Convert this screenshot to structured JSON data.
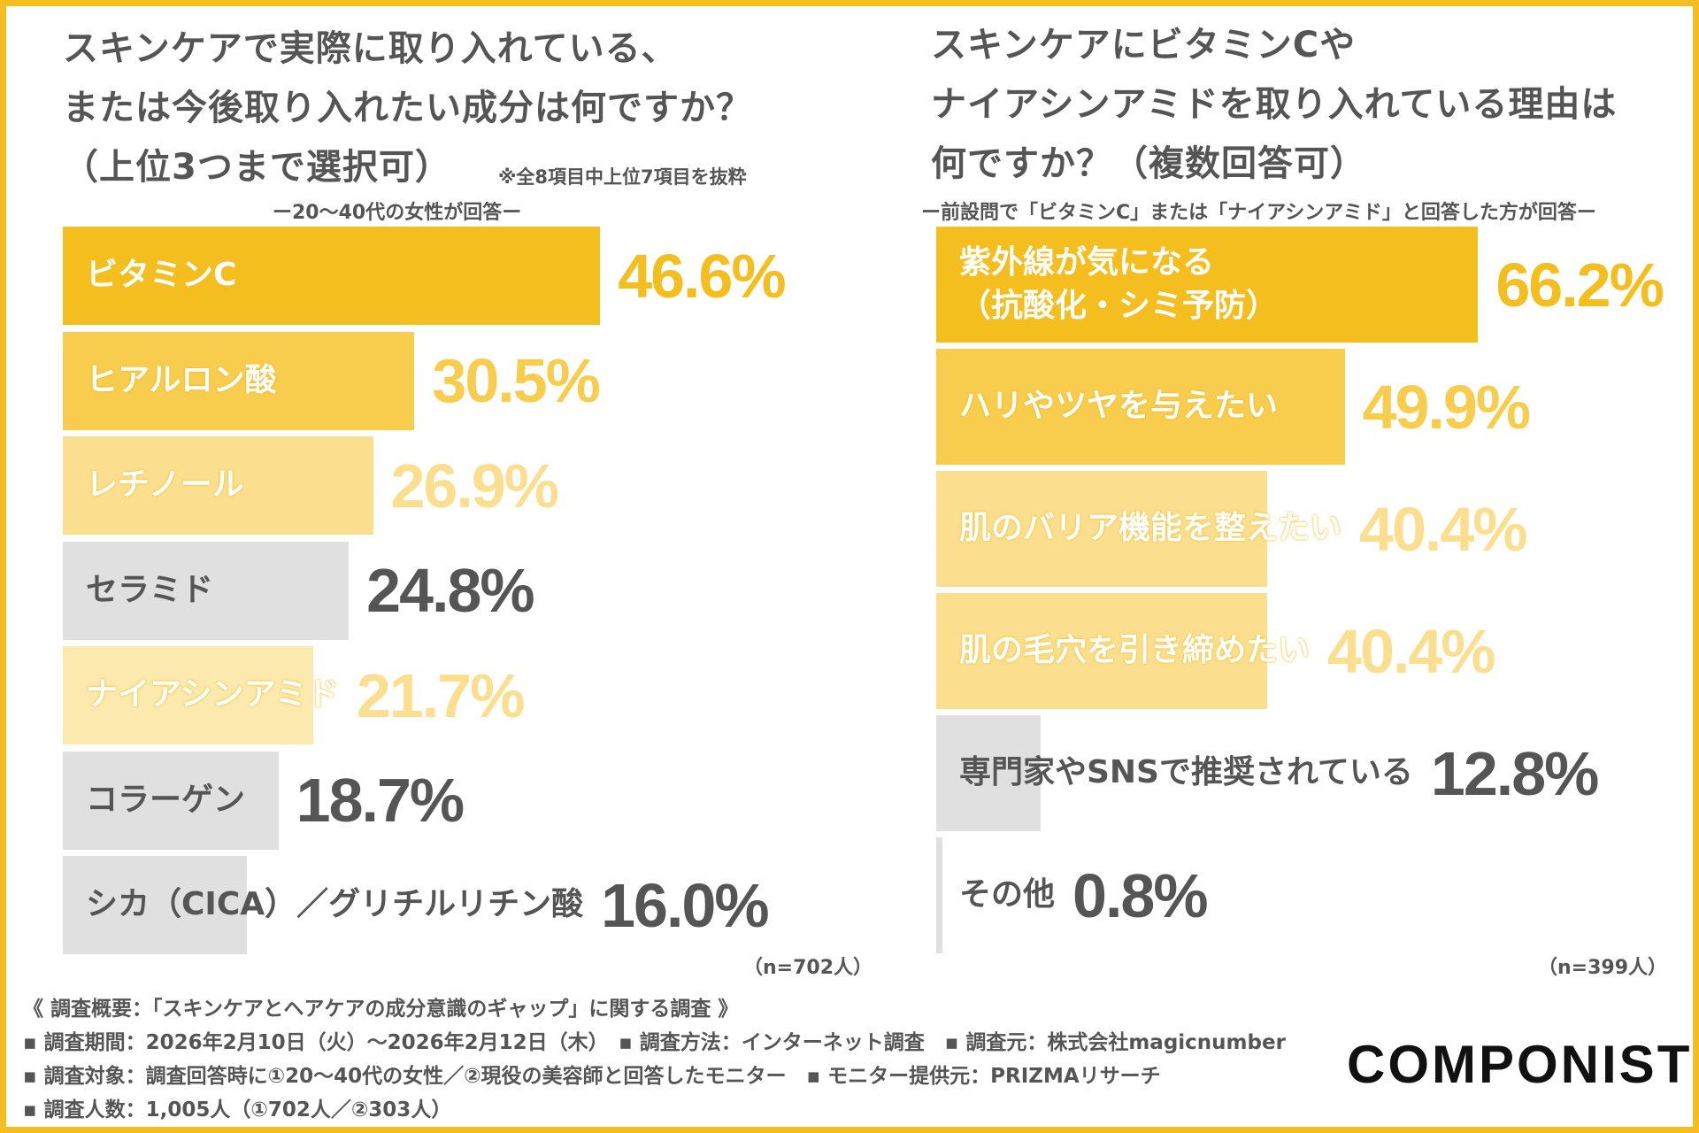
{
  "left": {
    "title_lines": [
      "スキンケアで実際に取り入れている、",
      "または今後取り入れたい成分は何ですか？",
      "（上位3つまで選択可）"
    ],
    "note": "※全8項目中上位7項目を抜粋",
    "subtitle": "ー20〜40代の女性が回答ー",
    "n_label": "（n=702人）"
  },
  "right": {
    "title_lines": [
      "スキンケアにビタミンCや",
      "ナイアシンアミドを取り入れている理由は",
      "何ですか？（複数回答可）"
    ],
    "subtitle": "ー前設問で「ビタミンC」または「ナイアシンアミド」と回答した方が回答ー",
    "n_label": "（n=399人）"
  },
  "chart_data": [
    {
      "type": "bar",
      "orientation": "horizontal",
      "unit": "%",
      "categories": [
        "ビタミンC",
        "ヒアルロン酸",
        "レチノール",
        "セラミド",
        "ナイアシンアミド",
        "コラーゲン",
        "シカ（CICA）／グリチルリチン酸"
      ],
      "values": [
        46.6,
        30.5,
        26.9,
        24.8,
        21.7,
        18.7,
        16.0
      ],
      "value_labels": [
        "46.6%",
        "30.5%",
        "26.9%",
        "24.8%",
        "21.7%",
        "18.7%",
        "16.0%"
      ],
      "bar_colors": [
        "#F5BE1F",
        "#F8CD4E",
        "#FBDF8E",
        "#E0E0E0",
        "#FCE9AE",
        "#E0E0E0",
        "#E0E0E0"
      ],
      "value_colors": [
        "#F5BE1F",
        "#F8CD4E",
        "#FBDF8E",
        "#555555",
        "#FBDF8E",
        "#555555",
        "#555555"
      ],
      "label_colors": [
        "#FFFFFF",
        "#FFFFFF",
        "#FFFFFF",
        "#555555",
        "#FFFFFF",
        "#555555",
        "#555555"
      ]
    },
    {
      "type": "bar",
      "orientation": "horizontal",
      "unit": "%",
      "categories": [
        "紫外線が気になる\n（抗酸化・シミ予防）",
        "ハリやツヤを与えたい",
        "肌のバリア機能を整えたい",
        "肌の毛穴を引き締めたい",
        "専門家やSNSで推奨されている",
        "その他"
      ],
      "values": [
        66.2,
        49.9,
        40.4,
        40.4,
        12.8,
        0.8
      ],
      "value_labels": [
        "66.2%",
        "49.9%",
        "40.4%",
        "40.4%",
        "12.8%",
        "0.8%"
      ],
      "bar_colors": [
        "#F5BE1F",
        "#F8CD4E",
        "#FBDF8E",
        "#FBDF8E",
        "#E0E0E0",
        "#E0E0E0"
      ],
      "value_colors": [
        "#F5BE1F",
        "#F8CD4E",
        "#FBDF8E",
        "#FBDF8E",
        "#555555",
        "#555555"
      ],
      "label_colors": [
        "#FFFFFF",
        "#FFFFFF",
        "#FFFFFF",
        "#FFFFFF",
        "#555555",
        "#555555"
      ]
    }
  ],
  "footer": {
    "lines": [
      "《 調査概要：「スキンケアとヘアケアの成分意識のギャップ」に関する調査 》",
      "▪ 調査期間：2026年2月10日（火）〜2026年2月12日（木）　▪ 調査方法：インターネット調査　▪ 調査元：株式会社magicnumber",
      "▪ 調査対象：調査回答時に①20〜40代の女性／②現役の美容師と回答したモニター　▪ モニター提供元：PRIZMAリサーチ",
      "▪ 調査人数：1,005人（①702人／②303人）"
    ],
    "logo": "COMPONIST"
  },
  "accent_color": "#F5BE1F"
}
